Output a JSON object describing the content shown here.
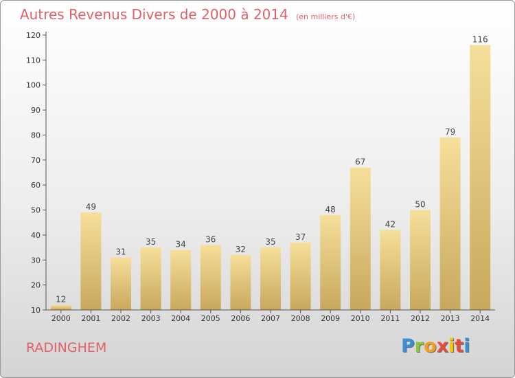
{
  "title": "Autres Revenus Divers de 2000 à 2014",
  "title_unit": "(en milliers d'€)",
  "location": "RADINGHEM",
  "logo": {
    "letters": [
      "P",
      "r",
      "o",
      "x",
      "i",
      "t",
      "i"
    ],
    "colors": [
      "#3a8fd8",
      "#8cc63f",
      "#f2a020",
      "#e84a3c",
      "#f2c200",
      "#e84a3c",
      "#3a8fd8"
    ]
  },
  "colors": {
    "bar_top": "#f6df9a",
    "bar_bottom": "#c8a85c",
    "title": "#e0606a",
    "axis": "#555555"
  },
  "chart_data": {
    "type": "bar",
    "categories": [
      "2000",
      "2001",
      "2002",
      "2003",
      "2004",
      "2005",
      "2006",
      "2007",
      "2008",
      "2009",
      "2010",
      "2011",
      "2012",
      "2013",
      "2014"
    ],
    "values": [
      12,
      49,
      31,
      35,
      34,
      36,
      32,
      35,
      37,
      48,
      67,
      42,
      50,
      79,
      116
    ],
    "ylim": [
      10,
      120
    ],
    "yticks": [
      10,
      20,
      30,
      40,
      50,
      60,
      70,
      80,
      90,
      100,
      110,
      120
    ],
    "grid": false
  }
}
